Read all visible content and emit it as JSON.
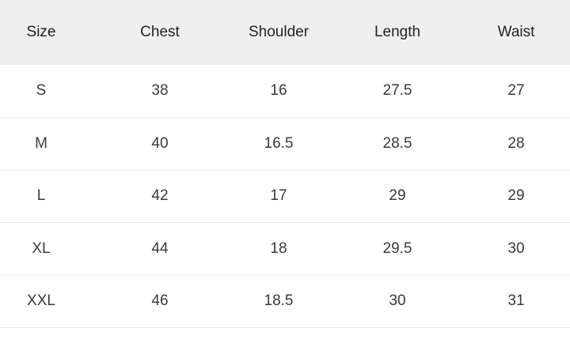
{
  "table": {
    "headers": [
      "Size",
      "Chest",
      "Shoulder",
      "Length",
      "Waist"
    ],
    "rows": [
      [
        "S",
        "38",
        "16",
        "27.5",
        "27"
      ],
      [
        "M",
        "40",
        "16.5",
        "28.5",
        "28"
      ],
      [
        "L",
        "42",
        "17",
        "29",
        "29"
      ],
      [
        "XL",
        "44",
        "18",
        "29.5",
        "30"
      ],
      [
        "XXL",
        "46",
        "18.5",
        "30",
        "31"
      ]
    ]
  }
}
